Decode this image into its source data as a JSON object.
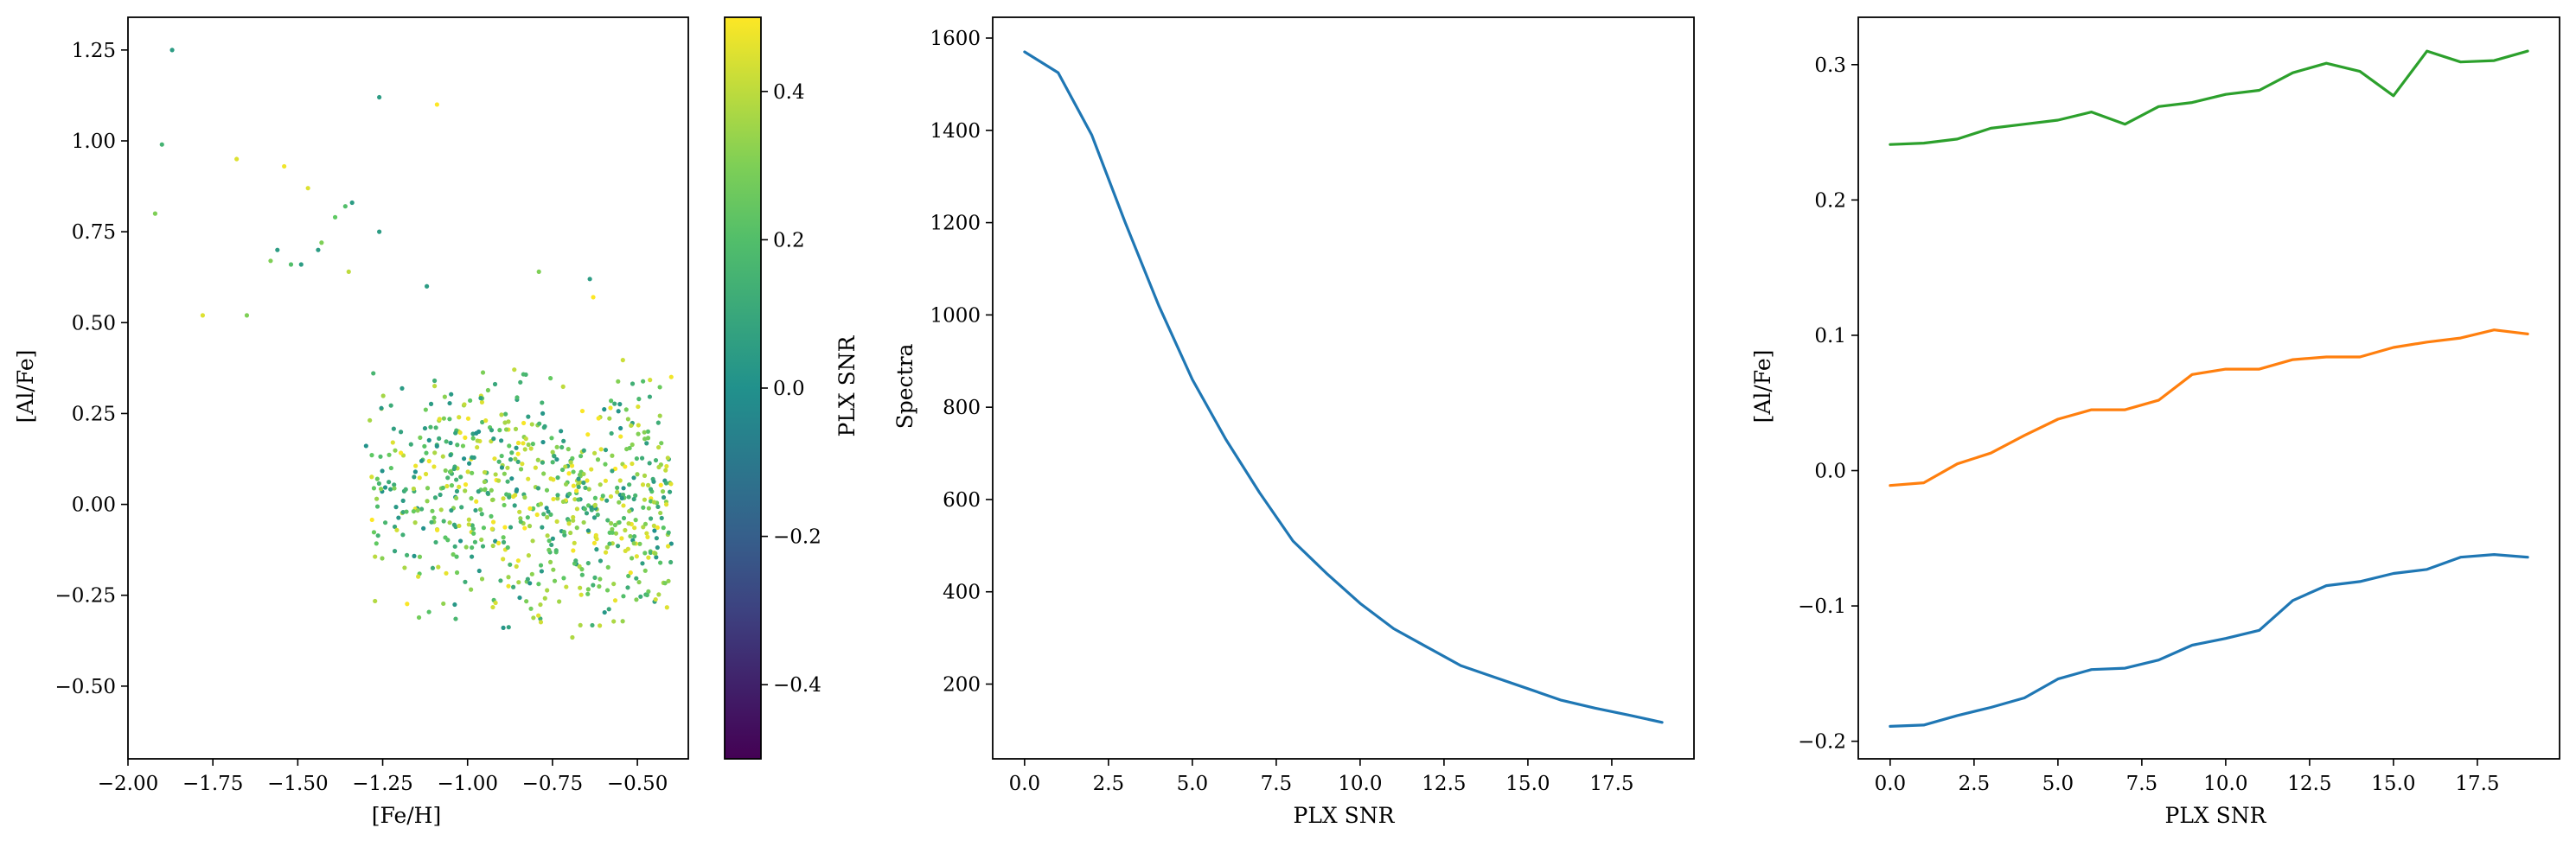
{
  "chart_data": [
    {
      "type": "scatter",
      "xlabel": "[Fe/H]",
      "ylabel": "[Al/Fe]",
      "xlim": [
        -2.0,
        -0.35
      ],
      "ylim": [
        -0.7,
        1.34
      ],
      "xticks": [
        -2.0,
        -1.75,
        -1.5,
        -1.25,
        -1.0,
        -0.75,
        -0.5
      ],
      "xtick_labels": [
        "−2.00",
        "−1.75",
        "−1.50",
        "−1.25",
        "−1.00",
        "−0.75",
        "−0.50"
      ],
      "yticks": [
        -0.5,
        -0.25,
        0.0,
        0.25,
        0.5,
        0.75,
        1.0,
        1.25
      ],
      "ytick_labels": [
        "−0.50",
        "−0.25",
        "0.00",
        "0.25",
        "0.50",
        "0.75",
        "1.00",
        "1.25"
      ],
      "colormap": "viridis",
      "colorbar": {
        "label": "PLX SNR",
        "range": [
          -0.5,
          0.5
        ],
        "ticks": [
          -0.4,
          -0.2,
          0.0,
          0.2,
          0.4
        ],
        "tick_labels": [
          "−0.4",
          "−0.2",
          "0.0",
          "0.2",
          "0.4"
        ]
      },
      "points": [
        {
          "x": -1.87,
          "y": 1.25,
          "c": 0.05
        },
        {
          "x": -1.26,
          "y": 1.12,
          "c": 0.05
        },
        {
          "x": -1.09,
          "y": 1.1,
          "c": 0.5
        },
        {
          "x": -1.9,
          "y": 0.99,
          "c": 0.15
        },
        {
          "x": -1.68,
          "y": 0.95,
          "c": 0.45
        },
        {
          "x": -1.54,
          "y": 0.93,
          "c": 0.48
        },
        {
          "x": -1.47,
          "y": 0.87,
          "c": 0.45
        },
        {
          "x": -1.92,
          "y": 0.8,
          "c": 0.3
        },
        {
          "x": -1.34,
          "y": 0.83,
          "c": 0.05
        },
        {
          "x": -1.36,
          "y": 0.82,
          "c": 0.2
        },
        {
          "x": -1.43,
          "y": 0.72,
          "c": 0.3
        },
        {
          "x": -1.39,
          "y": 0.79,
          "c": 0.25
        },
        {
          "x": -1.26,
          "y": 0.75,
          "c": 0.05
        },
        {
          "x": -1.56,
          "y": 0.7,
          "c": 0.05
        },
        {
          "x": -1.44,
          "y": 0.7,
          "c": 0.05
        },
        {
          "x": -1.58,
          "y": 0.67,
          "c": 0.3
        },
        {
          "x": -1.52,
          "y": 0.66,
          "c": 0.2
        },
        {
          "x": -1.49,
          "y": 0.66,
          "c": 0.05
        },
        {
          "x": -1.35,
          "y": 0.64,
          "c": 0.4
        },
        {
          "x": -0.79,
          "y": 0.64,
          "c": 0.3
        },
        {
          "x": -0.64,
          "y": 0.62,
          "c": 0.05
        },
        {
          "x": -1.12,
          "y": 0.6,
          "c": 0.05
        },
        {
          "x": -0.63,
          "y": 0.57,
          "c": 0.5
        },
        {
          "x": -1.65,
          "y": 0.52,
          "c": 0.3
        },
        {
          "x": -1.78,
          "y": 0.52,
          "c": 0.45
        }
      ],
      "bulk_region": {
        "x_range": [
          -1.3,
          -0.4
        ],
        "y_range": [
          -0.35,
          0.4
        ],
        "color_range": [
          0.0,
          0.5
        ],
        "point_count_estimate": 700
      }
    },
    {
      "type": "line",
      "xlabel": "PLX SNR",
      "ylabel": "Spectra",
      "xlim": [
        -0.95,
        19.95
      ],
      "ylim": [
        38,
        1645
      ],
      "xticks": [
        0.0,
        2.5,
        5.0,
        7.5,
        10.0,
        12.5,
        15.0,
        17.5
      ],
      "xtick_labels": [
        "0.0",
        "2.5",
        "5.0",
        "7.5",
        "10.0",
        "12.5",
        "15.0",
        "17.5"
      ],
      "yticks": [
        200,
        400,
        600,
        800,
        1000,
        1200,
        1400,
        1600
      ],
      "ytick_labels": [
        "200",
        "400",
        "600",
        "800",
        "1000",
        "1200",
        "1400",
        "1600"
      ],
      "series": [
        {
          "color": "#1f77b4",
          "x": [
            0,
            1,
            2,
            3,
            4,
            5,
            6,
            7,
            8,
            9,
            10,
            11,
            12,
            13,
            14,
            15,
            16,
            17,
            18,
            19
          ],
          "values": [
            1570,
            1525,
            1390,
            1200,
            1020,
            860,
            730,
            615,
            510,
            440,
            375,
            320,
            280,
            240,
            215,
            190,
            165,
            148,
            133,
            117
          ]
        }
      ]
    },
    {
      "type": "line",
      "xlabel": "PLX SNR",
      "ylabel": "[Al/Fe]",
      "xlim": [
        -0.95,
        19.95
      ],
      "ylim": [
        -0.213,
        0.335
      ],
      "xticks": [
        0.0,
        2.5,
        5.0,
        7.5,
        10.0,
        12.5,
        15.0,
        17.5
      ],
      "xtick_labels": [
        "0.0",
        "2.5",
        "5.0",
        "7.5",
        "10.0",
        "12.5",
        "15.0",
        "17.5"
      ],
      "yticks": [
        -0.2,
        -0.1,
        0.0,
        0.1,
        0.2,
        0.3
      ],
      "ytick_labels": [
        "−0.2",
        "−0.1",
        "0.0",
        "0.1",
        "0.2",
        "0.3"
      ],
      "series": [
        {
          "color": "#2ca02c",
          "x": [
            0,
            1,
            2,
            3,
            4,
            5,
            6,
            7,
            8,
            9,
            10,
            11,
            12,
            13,
            14,
            15,
            16,
            17,
            18,
            19
          ],
          "values": [
            0.241,
            0.242,
            0.245,
            0.253,
            0.256,
            0.259,
            0.265,
            0.256,
            0.269,
            0.272,
            0.278,
            0.281,
            0.294,
            0.301,
            0.295,
            0.277,
            0.31,
            0.302,
            0.303,
            0.31
          ]
        },
        {
          "color": "#ff7f0e",
          "x": [
            0,
            1,
            2,
            3,
            4,
            5,
            6,
            7,
            8,
            9,
            10,
            11,
            12,
            13,
            14,
            15,
            16,
            17,
            18,
            19
          ],
          "values": [
            -0.011,
            -0.009,
            0.005,
            0.013,
            0.026,
            0.038,
            0.045,
            0.045,
            0.052,
            0.071,
            0.075,
            0.075,
            0.082,
            0.084,
            0.084,
            0.091,
            0.095,
            0.098,
            0.104,
            0.101
          ]
        },
        {
          "color": "#1f77b4",
          "x": [
            0,
            1,
            2,
            3,
            4,
            5,
            6,
            7,
            8,
            9,
            10,
            11,
            12,
            13,
            14,
            15,
            16,
            17,
            18,
            19
          ],
          "values": [
            -0.189,
            -0.188,
            -0.181,
            -0.175,
            -0.168,
            -0.154,
            -0.147,
            -0.146,
            -0.14,
            -0.129,
            -0.124,
            -0.118,
            -0.096,
            -0.085,
            -0.082,
            -0.076,
            -0.073,
            -0.064,
            -0.062,
            -0.064
          ]
        }
      ]
    }
  ]
}
